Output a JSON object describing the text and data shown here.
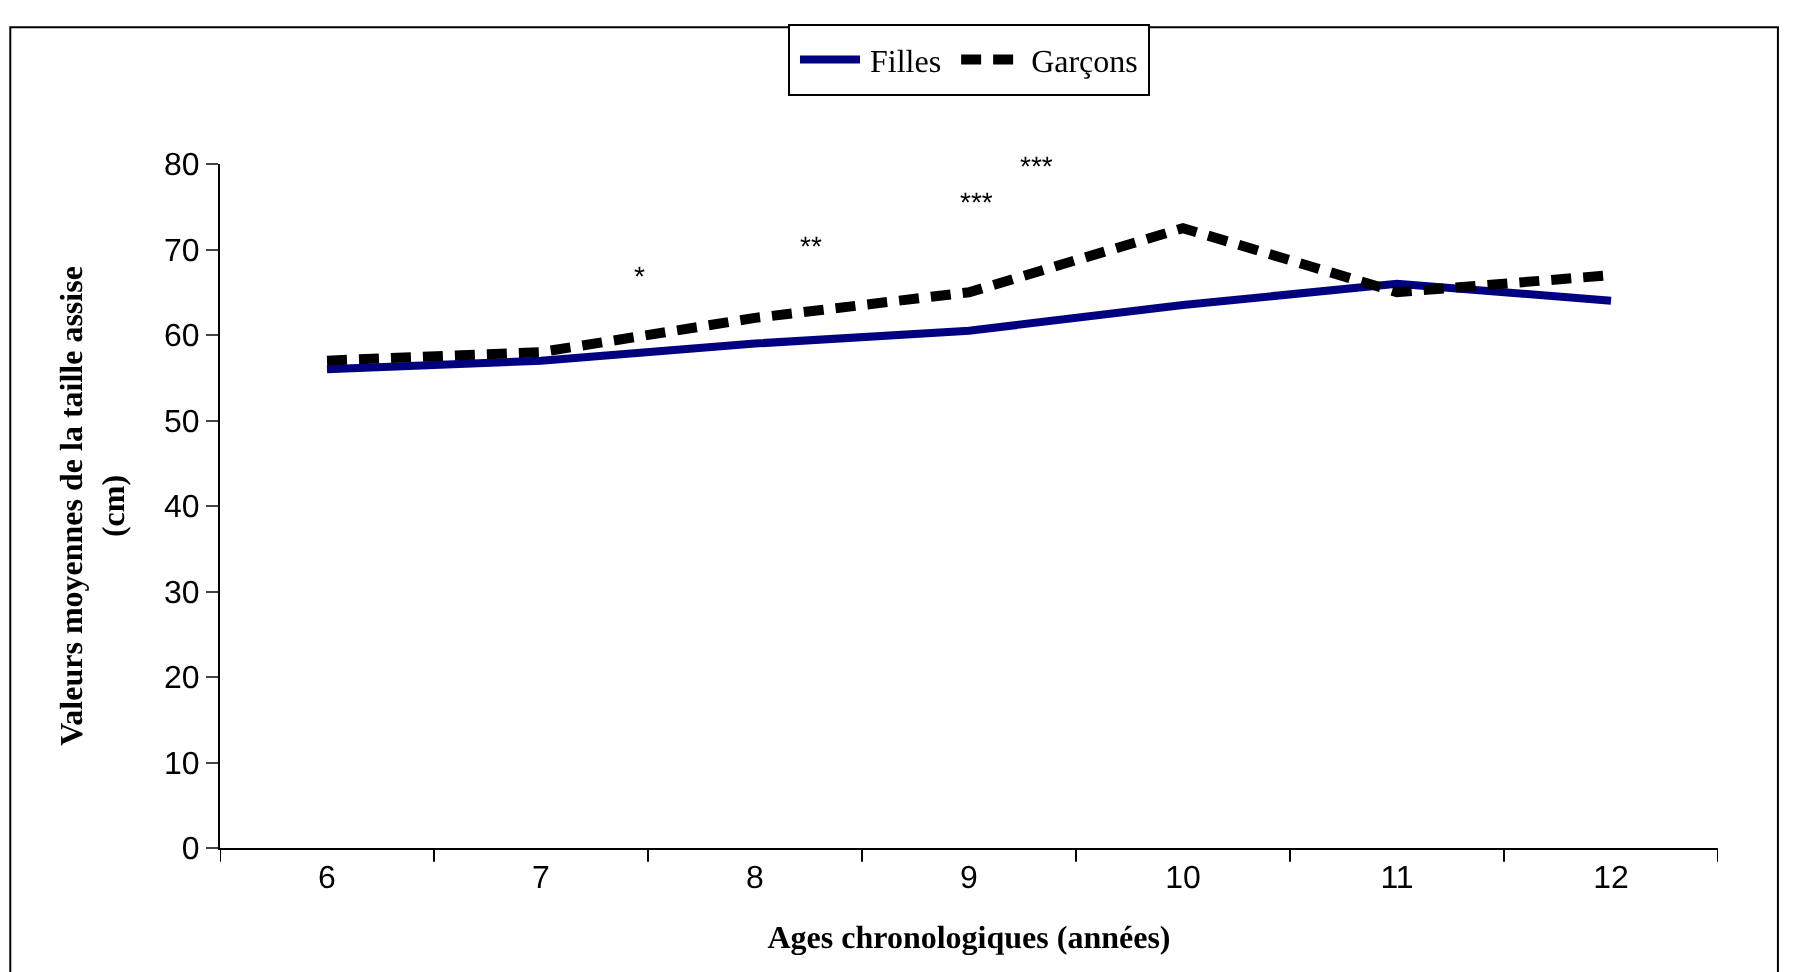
{
  "chart_data": {
    "type": "line",
    "xlabel": "Ages chronologiques (années)",
    "ylabel": "Valeurs moyennes de la taille assise (cm)",
    "categories": [
      "6",
      "7",
      "8",
      "9",
      "10",
      "11",
      "12"
    ],
    "series": [
      {
        "name": "Filles",
        "color": "#000080",
        "values": [
          56,
          57,
          59,
          60.5,
          63.5,
          66,
          64
        ],
        "line_style": "solid"
      },
      {
        "name": "Garçons",
        "color": "#000000",
        "values": [
          57,
          58,
          62,
          65,
          72.5,
          65,
          67
        ],
        "line_style": "dashed"
      }
    ],
    "ylim": [
      0,
      80
    ],
    "yticks": [
      0,
      10,
      20,
      30,
      40,
      50,
      60,
      70,
      80
    ],
    "legend": "top",
    "marker": "none",
    "annotations": [
      "*",
      "**",
      "***",
      "***"
    ]
  }
}
